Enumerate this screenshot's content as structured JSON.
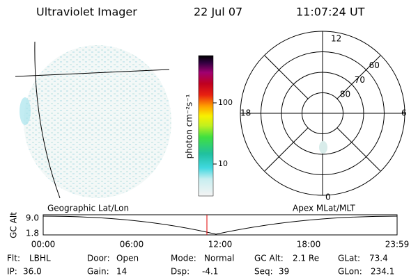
{
  "header": {
    "title": "Ultraviolet Imager",
    "date": "22 Jul 07",
    "time": "11:07:24 UT"
  },
  "image_panel": {
    "label": "Geographic Lat/Lon"
  },
  "colorbar": {
    "label": "photon cm⁻²s⁻¹",
    "ticks": [
      10,
      100
    ]
  },
  "polar_plot": {
    "label": "Apex MLat/MLT",
    "mlt": [
      "12",
      "18",
      "6",
      "0"
    ],
    "mlat": [
      60,
      70,
      80
    ]
  },
  "altitude_plot": {
    "ylabel": "GC Alt",
    "yticks": [
      "9.0",
      "1.8"
    ],
    "xticks": [
      "00:00",
      "06:00",
      "12:00",
      "18:00",
      "23:59"
    ]
  },
  "info": [
    [
      {
        "label": "Flt:",
        "value": "LBHL"
      },
      {
        "label": "Door:",
        "value": "Open"
      },
      {
        "label": "Mode:",
        "value": "Normal"
      },
      {
        "label": "GC Alt:",
        "value": "2.1 Re"
      },
      {
        "label": "GLat:",
        "value": "73.4"
      }
    ],
    [
      {
        "label": "IP:",
        "value": "36.0"
      },
      {
        "label": "Gain:",
        "value": "14"
      },
      {
        "label": "Dsp:",
        "value": "-4.1"
      },
      {
        "label": "Seq:",
        "value": "39"
      },
      {
        "label": "GLon:",
        "value": "234.1"
      }
    ]
  ]
}
